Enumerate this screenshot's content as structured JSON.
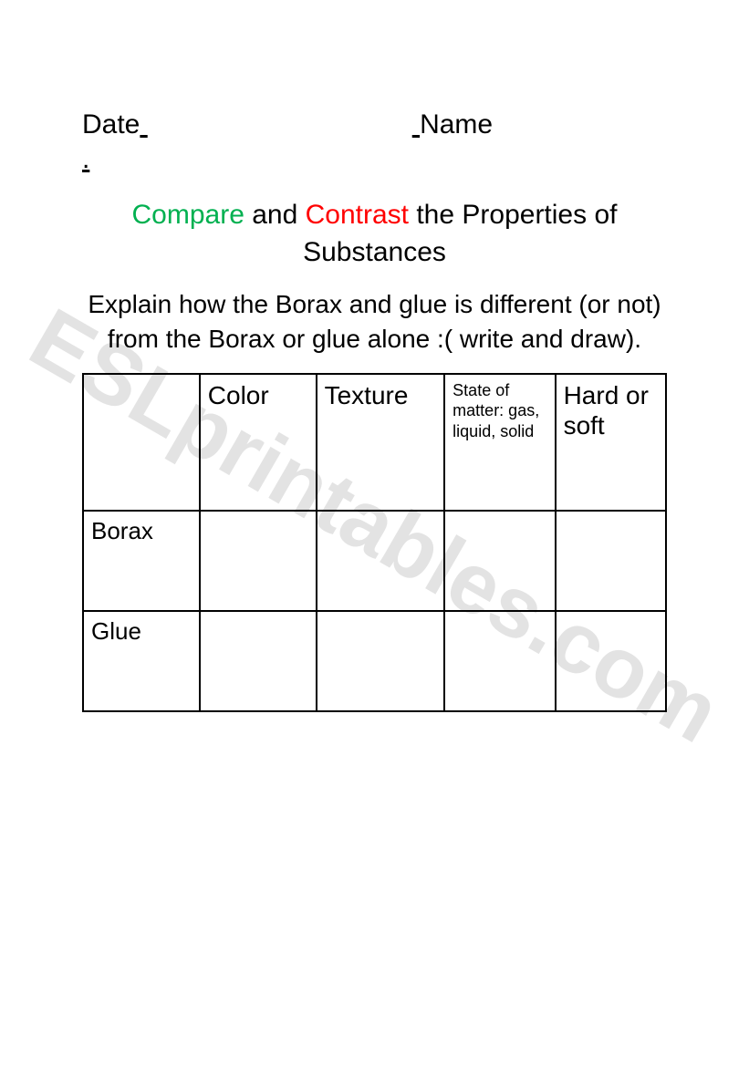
{
  "header": {
    "date_label": "Date",
    "name_label": "Name",
    "dot": "."
  },
  "title": {
    "word_compare": "Compare",
    "and": " and ",
    "word_contrast": "Contrast",
    "rest": " the Properties of Substances"
  },
  "instructions": "Explain how the Borax and glue is different (or not) from the Borax or glue alone :( write and draw).",
  "table": {
    "columns": [
      "",
      "Color",
      "Texture",
      "State of matter: gas, liquid, solid",
      "Hard or soft"
    ],
    "column_widths_pct": [
      20,
      20,
      22,
      19,
      19
    ],
    "header_fontsize_pt": [
      null,
      28,
      28,
      18,
      28
    ],
    "rows": [
      {
        "label": "Borax",
        "cells": [
          "",
          "",
          "",
          ""
        ]
      },
      {
        "label": "Glue",
        "cells": [
          "",
          "",
          "",
          ""
        ]
      }
    ],
    "border_color": "#000000",
    "background_color": "#ffffff"
  },
  "watermark": "ESLprintables.com",
  "colors": {
    "compare": "#00b050",
    "contrast": "#ff0000",
    "text": "#000000",
    "background": "#ffffff",
    "watermark": "rgba(128,128,128,0.22)"
  }
}
